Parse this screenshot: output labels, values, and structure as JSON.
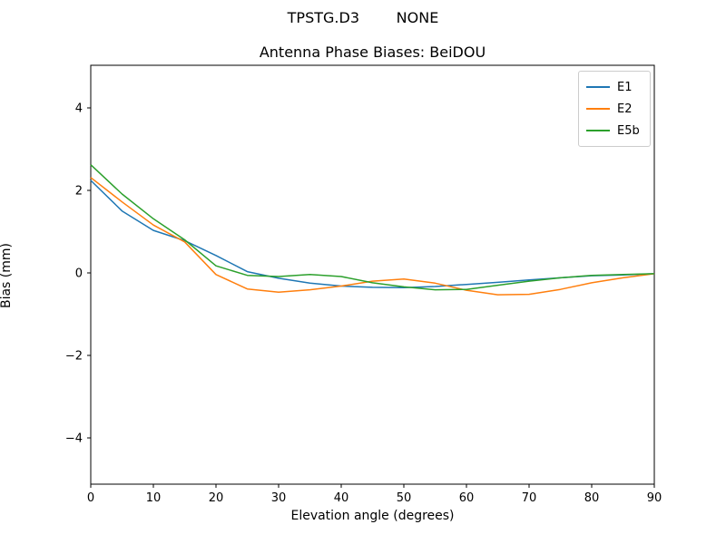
{
  "header": {
    "suptitle": "TPSTG.D3        NONE"
  },
  "chart_data": {
    "type": "line",
    "title": "Antenna Phase Biases: BeiDOU",
    "xlabel": "Elevation angle (degrees)",
    "ylabel": "Bias (mm)",
    "xlim": [
      0,
      90
    ],
    "ylim": [
      -5.12,
      5.03
    ],
    "xticks": [
      0,
      10,
      20,
      30,
      40,
      50,
      60,
      70,
      80,
      90
    ],
    "yticks": [
      -4,
      -2,
      0,
      2,
      4
    ],
    "grid": false,
    "legend_position": "upper right",
    "x": [
      0,
      5,
      10,
      15,
      20,
      25,
      30,
      35,
      40,
      45,
      50,
      55,
      60,
      65,
      70,
      75,
      80,
      85,
      90
    ],
    "series": [
      {
        "name": "E1",
        "color": "#1f77b4",
        "values": [
          2.24,
          1.5,
          1.03,
          0.78,
          0.42,
          0.03,
          -0.13,
          -0.25,
          -0.32,
          -0.35,
          -0.36,
          -0.33,
          -0.28,
          -0.23,
          -0.17,
          -0.12,
          -0.07,
          -0.05,
          -0.02
        ]
      },
      {
        "name": "E2",
        "color": "#ff7f0e",
        "values": [
          2.31,
          1.72,
          1.16,
          0.75,
          -0.04,
          -0.39,
          -0.47,
          -0.41,
          -0.32,
          -0.2,
          -0.15,
          -0.25,
          -0.42,
          -0.53,
          -0.52,
          -0.4,
          -0.24,
          -0.12,
          -0.02
        ]
      },
      {
        "name": "E5b",
        "color": "#2ca02c",
        "values": [
          2.62,
          1.91,
          1.31,
          0.8,
          0.17,
          -0.06,
          -0.09,
          -0.04,
          -0.09,
          -0.24,
          -0.34,
          -0.41,
          -0.4,
          -0.3,
          -0.2,
          -0.12,
          -0.06,
          -0.04,
          -0.02
        ]
      }
    ]
  }
}
